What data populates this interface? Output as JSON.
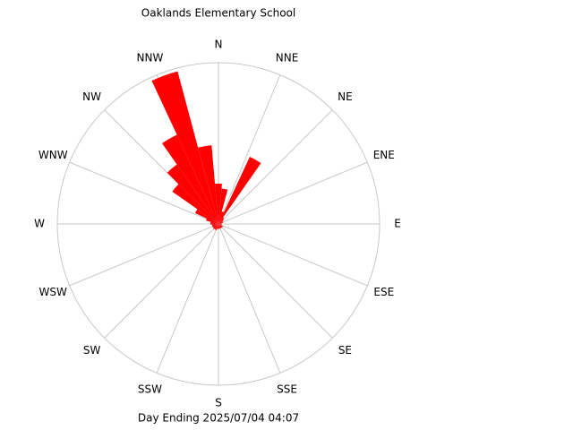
{
  "chart_data": {
    "type": "windrose",
    "title": "Oaklands Elementary School",
    "subtitle": "Day Ending 2025/07/04 04:07",
    "direction_labels": [
      "N",
      "NNE",
      "NE",
      "ENE",
      "E",
      "ESE",
      "SE",
      "SSE",
      "S",
      "SSW",
      "SW",
      "WSW",
      "W",
      "WNW",
      "NW",
      "NNW"
    ],
    "directions": [
      0,
      10,
      20,
      30,
      40,
      50,
      60,
      70,
      80,
      90,
      100,
      110,
      120,
      130,
      140,
      150,
      160,
      170,
      180,
      190,
      200,
      210,
      220,
      230,
      240,
      250,
      260,
      270,
      280,
      290,
      300,
      310,
      320,
      330,
      340,
      350
    ],
    "values": [
      0.25,
      0.22,
      0.08,
      0.46,
      0.05,
      0.04,
      0.03,
      0.03,
      0.02,
      0.02,
      0.02,
      0.02,
      0.03,
      0.03,
      0.03,
      0.03,
      0.03,
      0.03,
      0.03,
      0.03,
      0.04,
      0.04,
      0.04,
      0.04,
      0.04,
      0.04,
      0.04,
      0.05,
      0.05,
      0.08,
      0.16,
      0.35,
      0.45,
      0.61,
      0.98,
      0.49
    ],
    "color": "#ff0000",
    "rlim": [
      0,
      1
    ],
    "grid": true
  }
}
